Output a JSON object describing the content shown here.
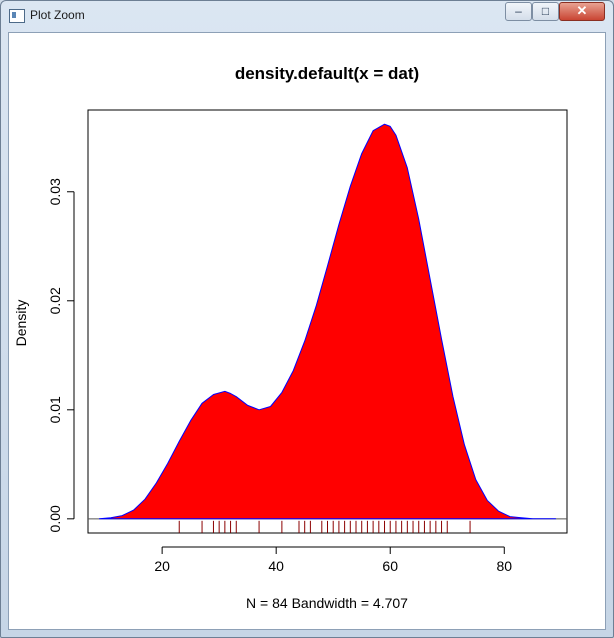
{
  "window": {
    "title": "Plot Zoom",
    "buttons": {
      "minimize": "–",
      "maximize": "□",
      "close": "✕"
    },
    "icon": "app-icon"
  },
  "chart_data": {
    "type": "area",
    "title": "density.default(x = dat)",
    "xlabel": "N = 84   Bandwidth = 4.707",
    "ylabel": "Density",
    "xlim": [
      7,
      91
    ],
    "ylim": [
      -0.0013,
      0.0375
    ],
    "x_ticks": [
      20,
      40,
      60,
      80
    ],
    "x_tick_labels": [
      "20",
      "40",
      "60",
      "80"
    ],
    "y_ticks": [
      0.0,
      0.01,
      0.02,
      0.03
    ],
    "y_tick_labels": [
      "0.00",
      "0.01",
      "0.02",
      "0.03"
    ],
    "fill_color": "#ff0000",
    "line_color": "#0000ff",
    "rug_color": "#8b0000",
    "grid": false,
    "legend": "none",
    "series": [
      {
        "x": [
          9,
          11,
          13,
          15,
          17,
          19,
          21,
          23,
          25,
          27,
          29,
          31,
          32,
          33,
          35,
          37,
          39,
          41,
          43,
          45,
          47,
          49,
          51,
          53,
          55,
          57,
          59,
          60,
          61,
          63,
          65,
          67,
          69,
          71,
          73,
          75,
          77,
          79,
          81,
          83,
          85,
          87,
          89
        ],
        "y": [
          0.0,
          0.0001,
          0.0003,
          0.0008,
          0.0018,
          0.0033,
          0.0051,
          0.0071,
          0.009,
          0.0106,
          0.0114,
          0.0117,
          0.0115,
          0.0112,
          0.0104,
          0.01,
          0.0103,
          0.0116,
          0.0136,
          0.0163,
          0.0195,
          0.0232,
          0.027,
          0.0305,
          0.0335,
          0.0356,
          0.0362,
          0.036,
          0.0352,
          0.0322,
          0.0275,
          0.022,
          0.0165,
          0.0112,
          0.0068,
          0.0036,
          0.0017,
          0.0007,
          0.0002,
          0.0001,
          0.0,
          0.0,
          0.0
        ]
      }
    ],
    "rug": [
      23,
      27,
      29,
      30,
      31,
      32,
      33,
      37,
      41,
      44,
      45,
      46,
      48,
      49,
      50,
      51,
      52,
      53,
      54,
      55,
      56,
      57,
      58,
      59,
      60,
      61,
      62,
      63,
      64,
      65,
      66,
      67,
      68,
      69,
      70,
      74
    ]
  }
}
